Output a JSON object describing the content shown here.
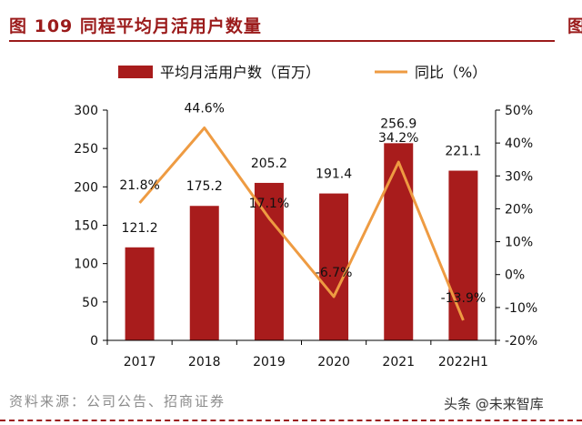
{
  "header": {
    "title": "图 109 同程平均月活用户数量",
    "right_fragment": "图"
  },
  "legend": {
    "bar_label": "平均月活用户数（百万）",
    "line_label": "同比（%）"
  },
  "colors": {
    "bar": "#a81c1c",
    "line": "#ee9b42",
    "title": "#9b1b1b"
  },
  "footer": {
    "source": "资料来源：公司公告、招商证券",
    "watermark": "头条 @未来智库"
  },
  "chart_data": {
    "type": "bar",
    "categories": [
      "2017",
      "2018",
      "2019",
      "2020",
      "2021",
      "2022H1"
    ],
    "series": [
      {
        "name": "平均月活用户数（百万）",
        "type": "bar",
        "axis": "left",
        "values": [
          121.2,
          175.2,
          205.2,
          191.4,
          256.9,
          221.1
        ],
        "labels": [
          "121.2",
          "175.2",
          "205.2",
          "191.4",
          "256.9",
          "221.1"
        ]
      },
      {
        "name": "同比（%）",
        "type": "line",
        "axis": "right",
        "values": [
          21.8,
          44.6,
          17.1,
          -6.7,
          34.2,
          -13.9
        ],
        "labels": [
          "21.8%",
          "44.6%",
          "17.1%",
          "-6.7%",
          "34.2%",
          "-13.9%"
        ]
      }
    ],
    "y_left": {
      "min": 0,
      "max": 300,
      "ticks": [
        "0",
        "50",
        "100",
        "150",
        "200",
        "250",
        "300"
      ]
    },
    "y_right": {
      "min": -20,
      "max": 50,
      "ticks": [
        "-20%",
        "-10%",
        "0%",
        "10%",
        "20%",
        "30%",
        "40%",
        "50%"
      ]
    },
    "grid": false,
    "legend_position": "top"
  }
}
